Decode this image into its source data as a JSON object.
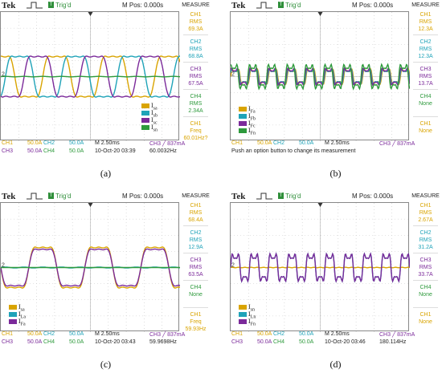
{
  "colors": {
    "ch1": "#d9a400",
    "ch2": "#1fa3b8",
    "ch3": "#7b2a9a",
    "ch4": "#2e9a3c"
  },
  "panels": [
    {
      "caption": "(a)",
      "top": {
        "brand": "Tek",
        "trig": "Trig'd",
        "mpos": "M Pos: 0.000s",
        "measure": "MEASURE"
      },
      "side": [
        {
          "l1": "CH1",
          "l2": "RMS",
          "l3": "69.3A",
          "ch": "ch1"
        },
        {
          "l1": "CH2",
          "l2": "RMS",
          "l3": "68.8A",
          "ch": "ch2"
        },
        {
          "l1": "CH3",
          "l2": "RMS",
          "l3": "67.5A",
          "ch": "ch3"
        },
        {
          "l1": "CH4",
          "l2": "RMS",
          "l3": "2.34A",
          "ch": "ch4"
        },
        {
          "l1": "CH1",
          "l2": "Freq",
          "l3": "60.01Hz?",
          "ch": "ch1"
        }
      ],
      "bottom": {
        "r1": [
          "CH1",
          "50.0A",
          "CH2",
          "50.0A",
          "M 2.50ms",
          "CH3 ╱ 837mA"
        ],
        "r2": [
          "CH3",
          "50.0A",
          "CH4",
          "50.0A",
          "10-Oct-20 03:39",
          "60.0032Hz"
        ],
        "msg": ""
      },
      "legend": [
        "I",
        "I",
        "I",
        "I"
      ],
      "legend_sub": [
        "sa",
        "sb",
        "sc",
        "sn"
      ]
    },
    {
      "caption": "(b)",
      "top": {
        "brand": "Tek",
        "trig": "Trig'd",
        "mpos": "M Pos: 0.000s",
        "measure": "MEASURE"
      },
      "side": [
        {
          "l1": "CH1",
          "l2": "RMS",
          "l3": "12.3A",
          "ch": "ch1"
        },
        {
          "l1": "CH2",
          "l2": "RMS",
          "l3": "12.3A",
          "ch": "ch2"
        },
        {
          "l1": "CH3",
          "l2": "RMS",
          "l3": "13.7A",
          "ch": "ch3"
        },
        {
          "l1": "CH4",
          "l2": "None",
          "l3": "",
          "ch": "ch4"
        },
        {
          "l1": "CH1",
          "l2": "None",
          "l3": "",
          "ch": "ch1"
        }
      ],
      "bottom": {
        "r1": [
          "CH1",
          "50.0A",
          "CH2",
          "50.0A",
          "M 2.50ms",
          "CH3 ╱ 837mA"
        ],
        "r2": [
          "",
          "",
          "",
          "",
          "",
          ""
        ],
        "msg": "Push an option button to change its measurement"
      },
      "legend": [
        "I",
        "I",
        "I",
        "I"
      ],
      "legend_sub": [
        "Fa",
        "Fb",
        "Fc",
        "Fn"
      ]
    },
    {
      "caption": "(c)",
      "top": {
        "brand": "Tek",
        "trig": "Trig'd",
        "mpos": "M Pos: 0.000s",
        "measure": "MEASURE"
      },
      "side": [
        {
          "l1": "CH1",
          "l2": "RMS",
          "l3": "68.4A",
          "ch": "ch1"
        },
        {
          "l1": "CH2",
          "l2": "RMS",
          "l3": "12.9A",
          "ch": "ch2"
        },
        {
          "l1": "CH3",
          "l2": "RMS",
          "l3": "63.5A",
          "ch": "ch3"
        },
        {
          "l1": "CH4",
          "l2": "None",
          "l3": "",
          "ch": "ch4"
        },
        {
          "l1": "CH1",
          "l2": "Freq",
          "l3": "59.93Hz",
          "ch": "ch1"
        }
      ],
      "bottom": {
        "r1": [
          "CH1",
          "50.0A",
          "CH2",
          "50.0A",
          "M 2.50ms",
          "CH3 ╱ 837mA"
        ],
        "r2": [
          "CH3",
          "50.0A",
          "CH4",
          "50.0A",
          "10-Oct-20 03:43",
          "59.9698Hz"
        ],
        "msg": ""
      },
      "legend": [
        "I",
        "I",
        "I"
      ],
      "legend_sub": [
        "sa",
        "La",
        "Fa"
      ]
    },
    {
      "caption": "(d)",
      "top": {
        "brand": "Tek",
        "trig": "Trig'd",
        "mpos": "M Pos: 0.000s",
        "measure": "MEASURE"
      },
      "side": [
        {
          "l1": "CH1",
          "l2": "RMS",
          "l3": "2.67A",
          "ch": "ch1"
        },
        {
          "l1": "CH2",
          "l2": "RMS",
          "l3": "31.2A",
          "ch": "ch2"
        },
        {
          "l1": "CH3",
          "l2": "RMS",
          "l3": "33.7A",
          "ch": "ch3"
        },
        {
          "l1": "CH4",
          "l2": "None",
          "l3": "",
          "ch": "ch4"
        },
        {
          "l1": "CH1",
          "l2": "None",
          "l3": "",
          "ch": "ch1"
        }
      ],
      "bottom": {
        "r1": [
          "CH1",
          "50.0A",
          "CH2",
          "50.0A",
          "M 2.50ms",
          "CH3 ╱ 837mA"
        ],
        "r2": [
          "CH3",
          "50.0A",
          "CH4",
          "50.0A",
          "10-Oct-20 03:46",
          "180.114Hz"
        ],
        "msg": ""
      },
      "legend": [
        "I",
        "I",
        "I"
      ],
      "legend_sub": [
        "sn",
        "Ln",
        "Fn"
      ]
    }
  ],
  "chart_data": [
    {
      "type": "line",
      "panel": "a",
      "x_unit": "div",
      "x_range": [
        0,
        10
      ],
      "y_range": [
        -4,
        4
      ],
      "series": [
        {
          "channel": "ch1",
          "shape": "square-ish",
          "fundamental_cycles": 3.2,
          "amplitude_div": 1.6,
          "phase_deg": 90
        },
        {
          "channel": "ch2",
          "shape": "square-ish",
          "fundamental_cycles": 3.2,
          "amplitude_div": 1.6,
          "phase_deg": -30
        },
        {
          "channel": "ch3",
          "shape": "square-ish",
          "fundamental_cycles": 3.2,
          "amplitude_div": 1.6,
          "phase_deg": 210
        },
        {
          "channel": "ch4",
          "shape": "flat",
          "fundamental_cycles": 3.2,
          "amplitude_div": 0.05,
          "phase_deg": 0
        }
      ]
    },
    {
      "type": "line",
      "panel": "b",
      "x_unit": "div",
      "x_range": [
        0,
        10
      ],
      "y_range": [
        -4,
        4
      ],
      "series": [
        {
          "channel": "ch1",
          "shape": "harmonic",
          "fundamental_cycles": 9.5,
          "amplitude_div": 0.5,
          "phase_deg": 0
        },
        {
          "channel": "ch2",
          "shape": "harmonic",
          "fundamental_cycles": 9.5,
          "amplitude_div": 0.5,
          "phase_deg": 10
        },
        {
          "channel": "ch3",
          "shape": "harmonic",
          "fundamental_cycles": 9.5,
          "amplitude_div": 0.55,
          "phase_deg": 20
        },
        {
          "channel": "ch4",
          "shape": "harmonic",
          "fundamental_cycles": 9.5,
          "amplitude_div": 0.8,
          "phase_deg": 30
        }
      ]
    },
    {
      "type": "line",
      "panel": "c",
      "x_unit": "div",
      "x_range": [
        0,
        10
      ],
      "y_range": [
        -4,
        4
      ],
      "series": [
        {
          "channel": "ch1",
          "shape": "square-ish",
          "fundamental_cycles": 3.2,
          "amplitude_div": 1.6,
          "phase_deg": 180
        },
        {
          "channel": "ch2",
          "shape": "flat",
          "fundamental_cycles": 3.2,
          "amplitude_div": 0.1,
          "phase_deg": 0
        },
        {
          "channel": "ch3",
          "shape": "square-ish",
          "fundamental_cycles": 3.2,
          "amplitude_div": 1.45,
          "phase_deg": 180
        },
        {
          "channel": "ch4",
          "shape": "flat",
          "fundamental_cycles": 3.2,
          "amplitude_div": 0.0,
          "phase_deg": 0
        }
      ]
    },
    {
      "type": "line",
      "panel": "d",
      "x_unit": "div",
      "x_range": [
        0,
        10
      ],
      "y_range": [
        -4,
        4
      ],
      "series": [
        {
          "channel": "ch1",
          "shape": "flat",
          "fundamental_cycles": 9.5,
          "amplitude_div": 0.05,
          "phase_deg": 0
        },
        {
          "channel": "ch2",
          "shape": "harmonic",
          "fundamental_cycles": 9.5,
          "amplitude_div": 0.9,
          "phase_deg": 0
        },
        {
          "channel": "ch3",
          "shape": "harmonic",
          "fundamental_cycles": 9.5,
          "amplitude_div": 0.9,
          "phase_deg": 0
        }
      ]
    }
  ]
}
